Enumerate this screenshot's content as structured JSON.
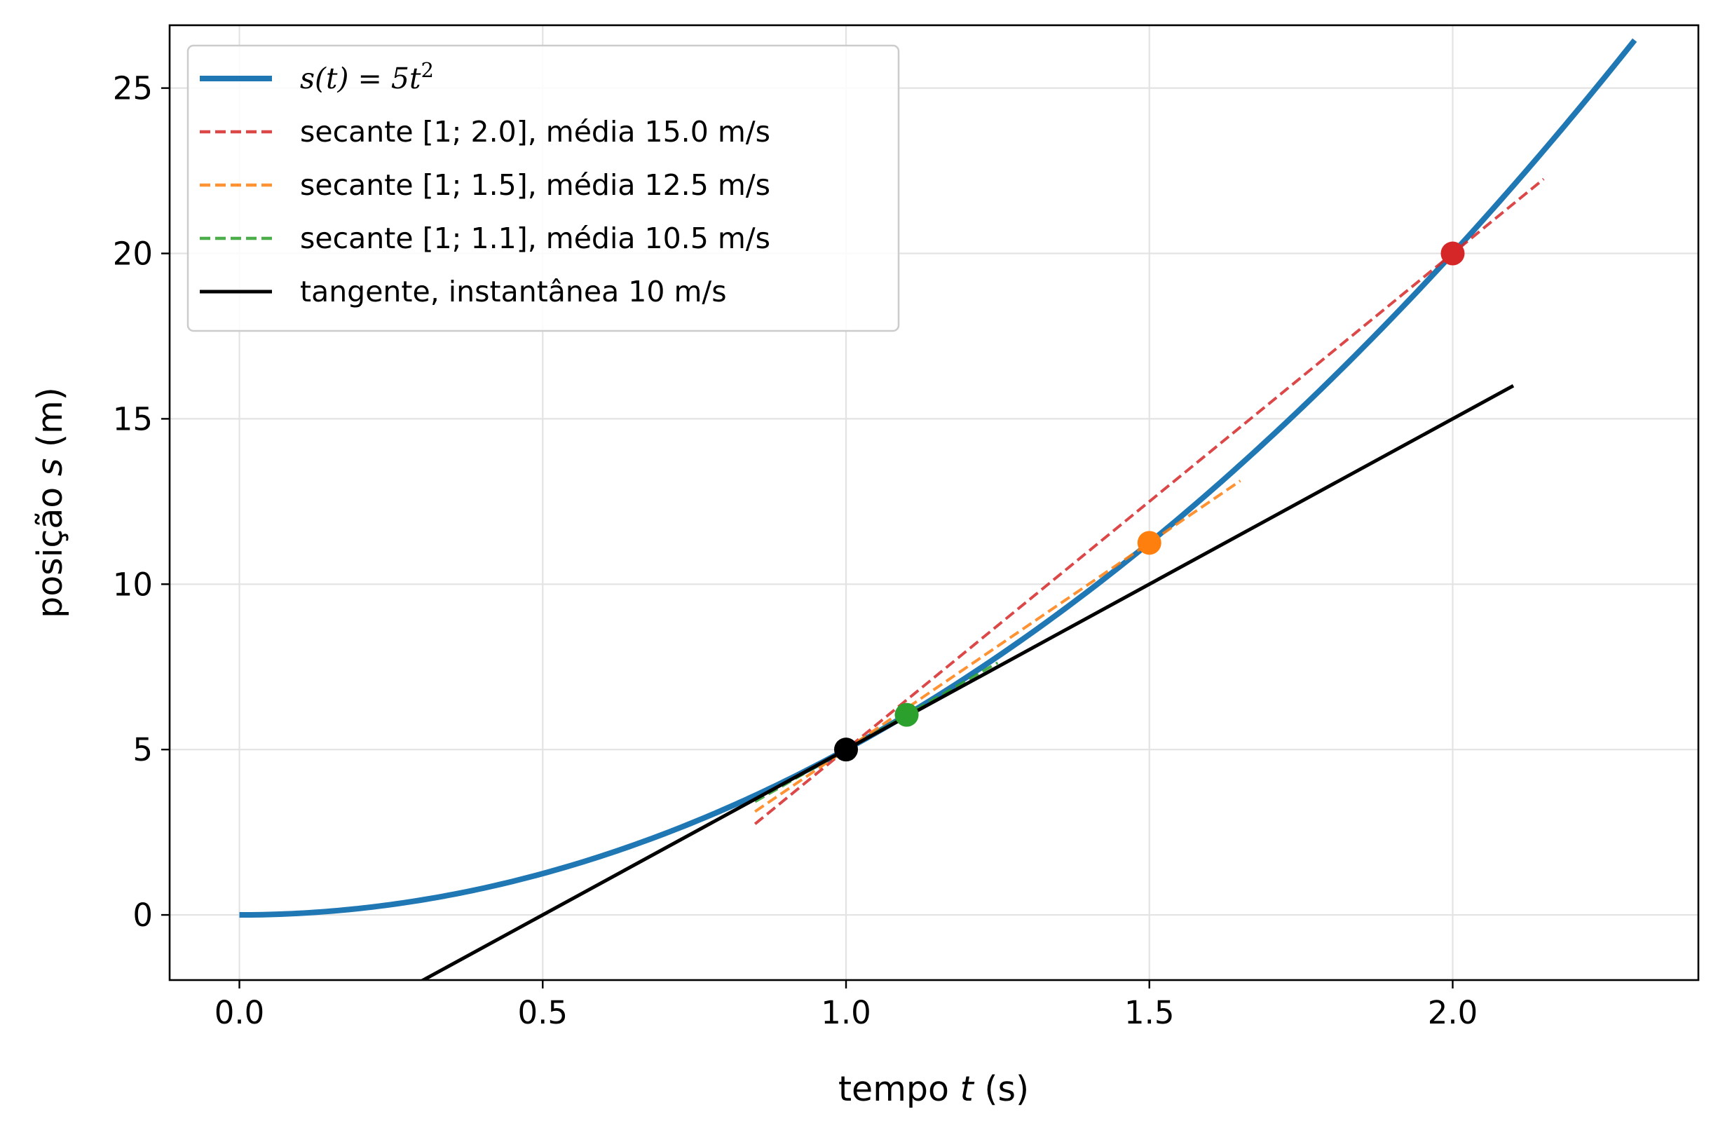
{
  "chart_data": {
    "type": "line",
    "xlabel": {
      "prefix": "tempo ",
      "var": "t",
      "suffix": " (s)"
    },
    "ylabel": {
      "prefix": "posição ",
      "var": "s",
      "suffix": " (m)"
    },
    "xlim": [
      -0.115,
      2.405
    ],
    "ylim": [
      -1.97,
      26.9
    ],
    "x_ticks": [
      {
        "value": 0.0,
        "label": "0.0"
      },
      {
        "value": 0.5,
        "label": "0.5"
      },
      {
        "value": 1.0,
        "label": "1.0"
      },
      {
        "value": 1.5,
        "label": "1.5"
      },
      {
        "value": 2.0,
        "label": "2.0"
      }
    ],
    "y_ticks": [
      {
        "value": 0,
        "label": "0"
      },
      {
        "value": 5,
        "label": "5"
      },
      {
        "value": 10,
        "label": "10"
      },
      {
        "value": 15,
        "label": "15"
      },
      {
        "value": 20,
        "label": "20"
      },
      {
        "value": 25,
        "label": "25"
      }
    ],
    "grid": true,
    "legend_position": "upper-left",
    "series": [
      {
        "name": "s(t) = 5t²",
        "kind": "curve",
        "function": "5*t^2",
        "x_range": [
          0,
          2.3
        ],
        "color": "#1f77b4",
        "style": "solid",
        "legend": {
          "math": "s(t) = 5t",
          "sup": "2"
        }
      },
      {
        "name": "secante [1;  2.0], média 15.0 m/s",
        "kind": "line",
        "x": [
          0.85,
          2.15
        ],
        "y": [
          2.75,
          22.25
        ],
        "color": "#d62728",
        "style": "dashed",
        "legend": {
          "text": "secante [1;  2.0], média 15.0 m/s"
        }
      },
      {
        "name": "secante [1;  1.5], média 12.5 m/s",
        "kind": "line",
        "x": [
          0.85,
          1.65
        ],
        "y": [
          3.125,
          13.125
        ],
        "color": "#ff7f0e",
        "style": "dashed",
        "legend": {
          "text": "secante [1;  1.5], média 12.5 m/s"
        }
      },
      {
        "name": "secante [1;  1.1], média 10.5 m/s",
        "kind": "line",
        "x": [
          0.85,
          1.25
        ],
        "y": [
          3.425,
          7.625
        ],
        "color": "#2ca02c",
        "style": "dashed",
        "legend": {
          "text": "secante [1;  1.1], média 10.5 m/s"
        }
      },
      {
        "name": "tangente, instantânea 10 m/s",
        "kind": "line",
        "x": [
          0.3,
          2.1
        ],
        "y": [
          -2.0,
          16.0
        ],
        "color": "#000000",
        "style": "solid",
        "legend": {
          "text": "tangente, instantânea 10 m/s"
        }
      }
    ],
    "points": [
      {
        "x": 2.0,
        "y": 20.0,
        "color": "#d62728"
      },
      {
        "x": 1.5,
        "y": 11.25,
        "color": "#ff7f0e"
      },
      {
        "x": 1.1,
        "y": 6.05,
        "color": "#2ca02c"
      },
      {
        "x": 1.0,
        "y": 5.0,
        "color": "#000000"
      }
    ]
  }
}
